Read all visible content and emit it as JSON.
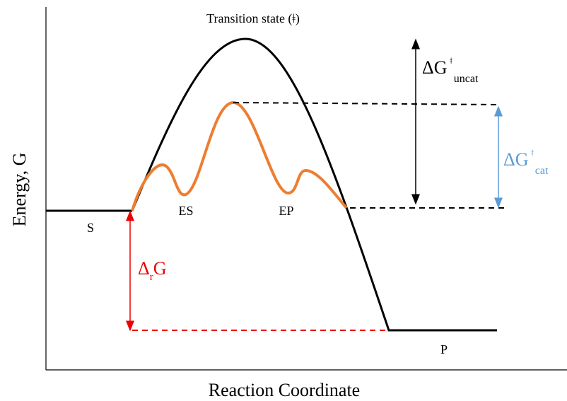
{
  "axes": {
    "y_label": "Energy, G",
    "x_label": "Reaction Coordinate"
  },
  "labels": {
    "transition_state": "Transition state (ǂ)",
    "dg_uncat": {
      "main": "ΔG",
      "sup": "ǂ",
      "sub": "uncat"
    },
    "dg_cat": {
      "main": "ΔG",
      "sup": "ǂ",
      "sub": "cat"
    },
    "dr_g": {
      "main": "Δ",
      "sub": "r",
      "tail": "G"
    },
    "s": "S",
    "es": "ES",
    "ep": "EP",
    "p": "P"
  }
}
